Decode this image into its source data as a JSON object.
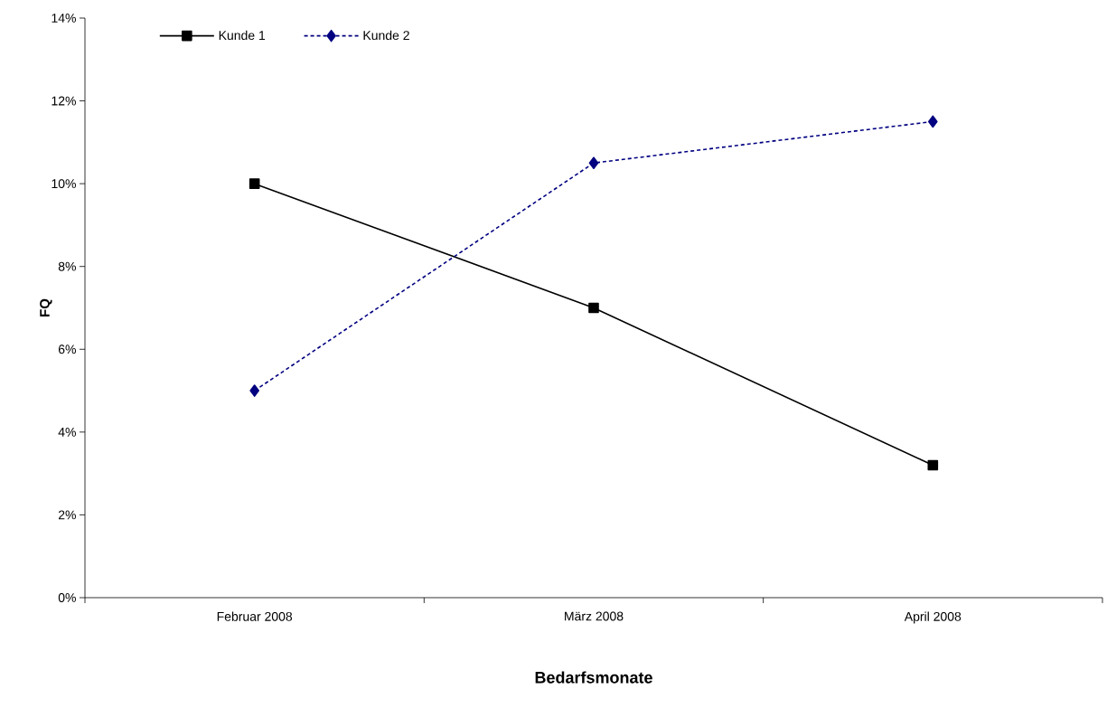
{
  "chart_data": {
    "type": "line",
    "xlabel": "Bedarfsmonate",
    "ylabel": "FQ",
    "categories": [
      "Februar 2008",
      "März 2008",
      "April 2008"
    ],
    "series": [
      {
        "name": "Kunde 1",
        "color": "#000000",
        "values": [
          10,
          7,
          3.2
        ],
        "marker": "square",
        "line_style": "solid"
      },
      {
        "name": "Kunde 2",
        "color": "#000080",
        "values": [
          5,
          10.5,
          11.5
        ],
        "marker": "diamond",
        "line_style": "dashed"
      }
    ],
    "ylim": [
      0,
      14
    ],
    "yticks": [
      {
        "value": 0,
        "label": "0%"
      },
      {
        "value": 2,
        "label": "2%"
      },
      {
        "value": 4,
        "label": "4%"
      },
      {
        "value": 6,
        "label": "6%"
      },
      {
        "value": 8,
        "label": "8%"
      },
      {
        "value": 10,
        "label": "10%"
      },
      {
        "value": 12,
        "label": "12%"
      },
      {
        "value": 14,
        "label": "14%"
      }
    ],
    "grid": false,
    "legend": "top left"
  }
}
